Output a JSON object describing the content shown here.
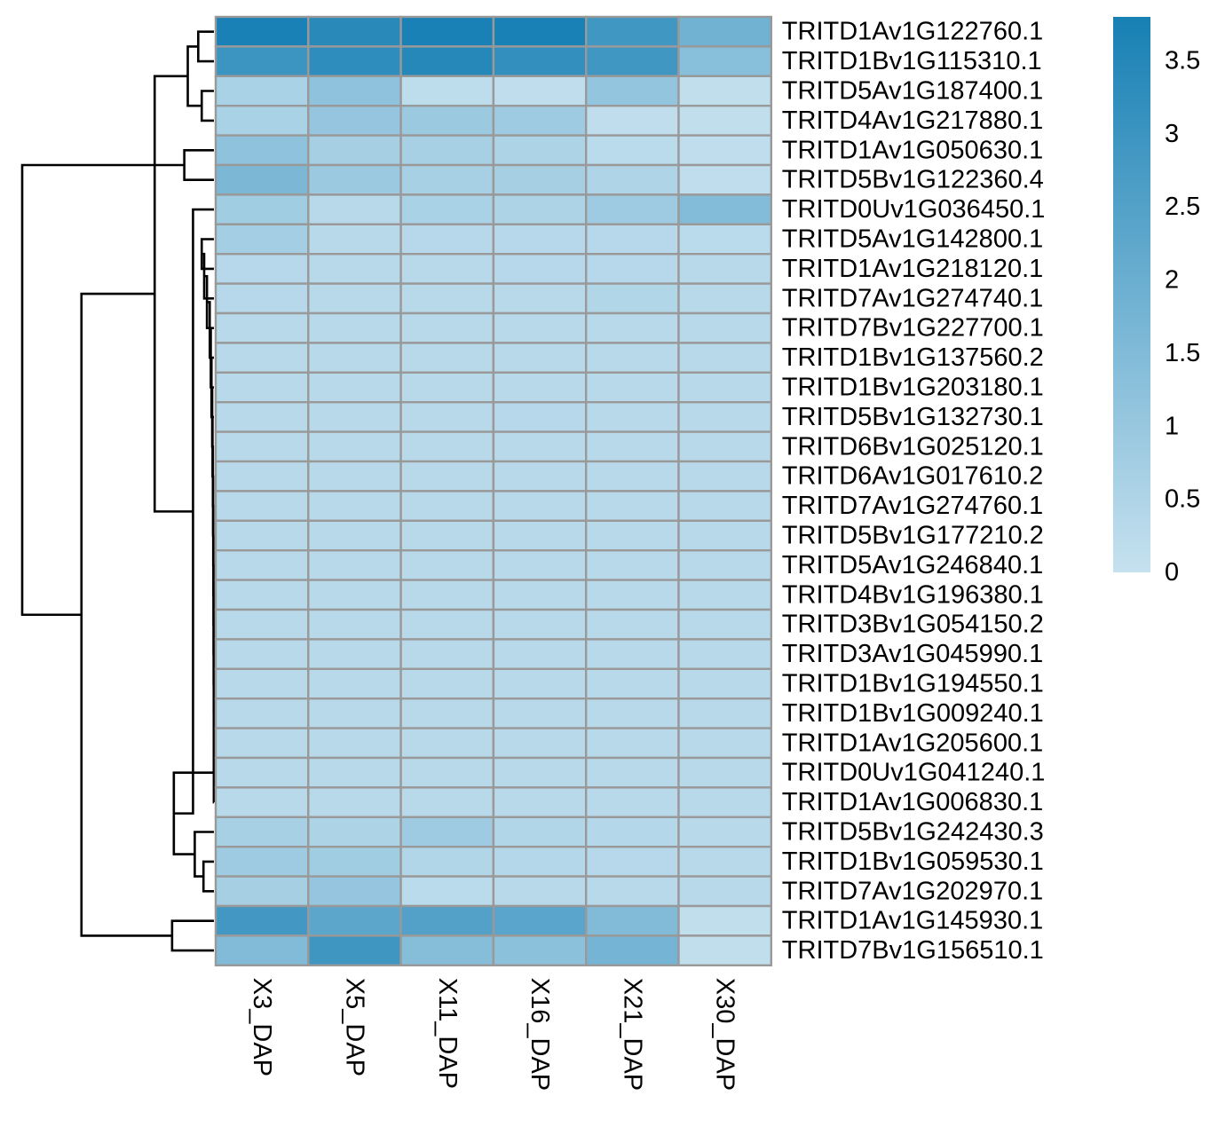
{
  "chart_data": {
    "type": "heatmap",
    "title": "",
    "xlabel": "",
    "ylabel": "",
    "columns": [
      "X3_DAP",
      "X5_DAP",
      "X11_DAP",
      "X16_DAP",
      "X21_DAP",
      "X30_DAP"
    ],
    "rows": [
      "TRITD1Av1G122760.1",
      "TRITD1Bv1G115310.1",
      "TRITD5Av1G187400.1",
      "TRITD4Av1G217880.1",
      "TRITD1Av1G050630.1",
      "TRITD5Bv1G122360.4",
      "TRITD0Uv1G036450.1",
      "TRITD5Av1G142800.1",
      "TRITD1Av1G218120.1",
      "TRITD7Av1G274740.1",
      "TRITD7Bv1G227700.1",
      "TRITD1Bv1G137560.2",
      "TRITD1Bv1G203180.1",
      "TRITD5Bv1G132730.1",
      "TRITD6Bv1G025120.1",
      "TRITD6Av1G017610.2",
      "TRITD7Av1G274760.1",
      "TRITD5Bv1G177210.2",
      "TRITD5Av1G246840.1",
      "TRITD4Bv1G196380.1",
      "TRITD3Bv1G054150.2",
      "TRITD3Av1G045990.1",
      "TRITD1Bv1G194550.1",
      "TRITD1Bv1G009240.1",
      "TRITD1Av1G205600.1",
      "TRITD0Uv1G041240.1",
      "TRITD1Av1G006830.1",
      "TRITD5Bv1G242430.3",
      "TRITD1Bv1G059530.1",
      "TRITD7Av1G202970.1",
      "TRITD1Av1G145930.1",
      "TRITD7Bv1G156510.1"
    ],
    "values": [
      [
        3.75,
        3.4,
        3.75,
        3.75,
        2.9,
        1.85
      ],
      [
        3.0,
        3.3,
        3.5,
        3.2,
        2.9,
        1.35
      ],
      [
        0.6,
        1.2,
        0.2,
        0.15,
        1.1,
        0.1
      ],
      [
        0.6,
        1.05,
        0.95,
        0.85,
        0.15,
        0.1
      ],
      [
        1.2,
        0.7,
        0.65,
        0.55,
        0.25,
        0.15
      ],
      [
        1.6,
        0.95,
        0.65,
        0.7,
        0.5,
        0.15
      ],
      [
        0.8,
        0.3,
        0.6,
        0.55,
        0.85,
        1.45
      ],
      [
        0.75,
        0.3,
        0.35,
        0.35,
        0.35,
        0.25
      ],
      [
        0.35,
        0.3,
        0.3,
        0.35,
        0.35,
        0.3
      ],
      [
        0.35,
        0.3,
        0.3,
        0.3,
        0.45,
        0.3
      ],
      [
        0.3,
        0.3,
        0.3,
        0.3,
        0.3,
        0.3
      ],
      [
        0.3,
        0.3,
        0.3,
        0.3,
        0.3,
        0.3
      ],
      [
        0.3,
        0.3,
        0.3,
        0.3,
        0.3,
        0.3
      ],
      [
        0.3,
        0.3,
        0.3,
        0.35,
        0.3,
        0.3
      ],
      [
        0.3,
        0.3,
        0.3,
        0.3,
        0.3,
        0.3
      ],
      [
        0.3,
        0.3,
        0.3,
        0.3,
        0.3,
        0.3
      ],
      [
        0.3,
        0.3,
        0.3,
        0.3,
        0.3,
        0.3
      ],
      [
        0.3,
        0.3,
        0.3,
        0.3,
        0.3,
        0.3
      ],
      [
        0.3,
        0.3,
        0.3,
        0.3,
        0.3,
        0.3
      ],
      [
        0.3,
        0.3,
        0.3,
        0.3,
        0.3,
        0.3
      ],
      [
        0.3,
        0.3,
        0.3,
        0.3,
        0.3,
        0.3
      ],
      [
        0.3,
        0.3,
        0.3,
        0.3,
        0.3,
        0.3
      ],
      [
        0.3,
        0.3,
        0.3,
        0.3,
        0.3,
        0.3
      ],
      [
        0.3,
        0.3,
        0.3,
        0.3,
        0.3,
        0.3
      ],
      [
        0.3,
        0.3,
        0.3,
        0.3,
        0.3,
        0.3
      ],
      [
        0.3,
        0.3,
        0.3,
        0.3,
        0.3,
        0.3
      ],
      [
        0.3,
        0.3,
        0.3,
        0.3,
        0.3,
        0.3
      ],
      [
        0.65,
        0.55,
        0.85,
        0.45,
        0.4,
        0.3
      ],
      [
        0.85,
        0.8,
        0.45,
        0.4,
        0.35,
        0.3
      ],
      [
        0.7,
        1.05,
        0.25,
        0.3,
        0.3,
        0.3
      ],
      [
        2.85,
        2.3,
        2.5,
        2.35,
        1.5,
        0.1
      ],
      [
        1.5,
        2.95,
        1.4,
        1.25,
        1.75,
        0.1
      ]
    ],
    "color_scale": {
      "min": 0,
      "max": 3.8,
      "low_color": "#c6e1ef",
      "high_color": "#1780b4",
      "ticks": [
        0,
        0.5,
        1,
        1.5,
        2,
        2.5,
        3,
        3.5
      ],
      "tick_labels": [
        "0",
        "0.5",
        "1",
        "1.5",
        "2",
        "2.5",
        "3",
        "3.5"
      ]
    },
    "cell_border_color": "#999999",
    "row_dendrogram": [
      [
        2,
        3,
        0.35
      ],
      [
        0,
        1,
        0.45
      ],
      [
        4,
        5,
        0.85
      ],
      [
        33,
        32,
        0.75
      ],
      [
        7,
        8,
        0.35
      ],
      [
        28,
        29,
        0.3
      ],
      [
        36,
        9,
        0.28
      ],
      [
        38,
        10,
        0.2
      ],
      [
        39,
        11,
        0.12
      ],
      [
        40,
        12,
        0.09
      ],
      [
        41,
        13,
        0.07
      ],
      [
        42,
        14,
        0.05
      ],
      [
        43,
        15,
        0.04
      ],
      [
        44,
        16,
        0.03
      ],
      [
        45,
        17,
        0.025
      ],
      [
        46,
        18,
        0.02
      ],
      [
        47,
        19,
        0.015
      ],
      [
        48,
        20,
        0.012
      ],
      [
        49,
        21,
        0.01
      ],
      [
        50,
        22,
        0.008
      ],
      [
        51,
        23,
        0.006
      ],
      [
        52,
        24,
        0.005
      ],
      [
        53,
        25,
        0.004
      ],
      [
        54,
        26,
        0.003
      ],
      [
        27,
        37,
        0.55
      ],
      [
        55,
        56,
        1.15
      ],
      [
        30,
        31,
        1.2
      ],
      [
        6,
        57,
        0.6
      ],
      [
        35,
        59,
        1.7
      ],
      [
        60,
        58,
        3.8
      ],
      [
        34,
        61,
        5.5
      ]
    ]
  }
}
